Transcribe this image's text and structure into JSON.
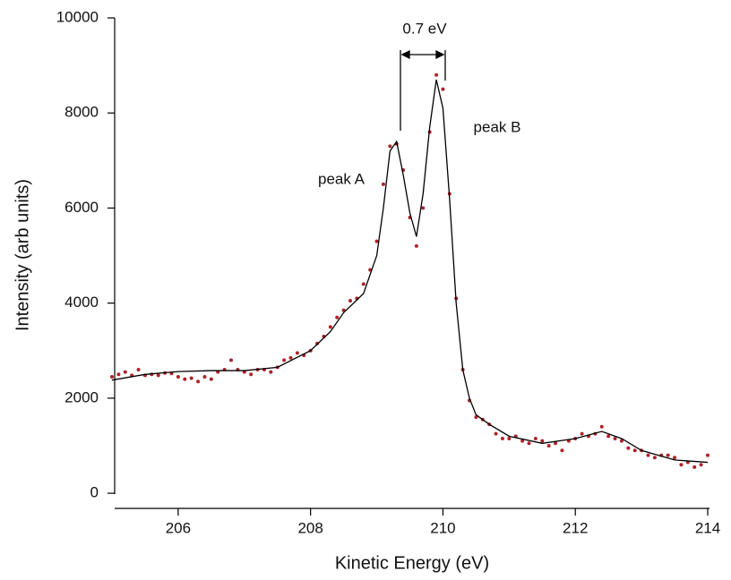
{
  "chart_data": {
    "type": "scatter",
    "x_label": "Kinetic Energy (eV)",
    "y_label": "Intensity (arb units)",
    "xlim": [
      205,
      214
    ],
    "xticks": [
      206,
      208,
      210,
      212,
      214
    ],
    "ylim": [
      -300,
      10000
    ],
    "yticks": [
      0,
      2000,
      4000,
      6000,
      8000,
      10000
    ],
    "annotations": [
      "0.7 eV",
      "peak A",
      "peak B"
    ],
    "series": [
      {
        "type": "scatter",
        "color": "#b0232a",
        "x": [
          205.0,
          205.1,
          205.2,
          205.3,
          205.4,
          205.5,
          205.6,
          205.7,
          205.8,
          205.9,
          206.0,
          206.1,
          206.2,
          206.3,
          206.4,
          206.5,
          206.6,
          206.7,
          206.8,
          206.9,
          207.0,
          207.1,
          207.2,
          207.3,
          207.4,
          207.5,
          207.6,
          207.7,
          207.8,
          207.9,
          208.0,
          208.1,
          208.2,
          208.3,
          208.4,
          208.5,
          208.6,
          208.7,
          208.8,
          208.9,
          209.0,
          209.1,
          209.2,
          209.3,
          209.4,
          209.5,
          209.6,
          209.7,
          209.8,
          209.9,
          210.0,
          210.1,
          210.2,
          210.3,
          210.4,
          210.5,
          210.6,
          210.7,
          210.8,
          210.9,
          211.0,
          211.1,
          211.2,
          211.3,
          211.4,
          211.5,
          211.6,
          211.7,
          211.8,
          211.9,
          212.0,
          212.1,
          212.2,
          212.3,
          212.4,
          212.5,
          212.6,
          212.7,
          212.8,
          212.9,
          213.0,
          213.1,
          213.2,
          213.3,
          213.4,
          213.5,
          213.6,
          213.7,
          213.8,
          213.9,
          214.0
        ],
        "values": [
          2450,
          2500,
          2550,
          2480,
          2600,
          2480,
          2500,
          2480,
          2530,
          2520,
          2450,
          2400,
          2420,
          2350,
          2450,
          2400,
          2550,
          2600,
          2800,
          2600,
          2550,
          2500,
          2600,
          2600,
          2550,
          2650,
          2800,
          2850,
          2950,
          2900,
          3000,
          3150,
          3300,
          3500,
          3700,
          3850,
          4050,
          4100,
          4400,
          4700,
          5300,
          6500,
          7300,
          7350,
          6800,
          5800,
          5200,
          6000,
          7600,
          8800,
          8500,
          6300,
          4100,
          2600,
          1950,
          1600,
          1550,
          1450,
          1250,
          1150,
          1150,
          1200,
          1100,
          1050,
          1150,
          1100,
          1000,
          1050,
          900,
          1100,
          1150,
          1250,
          1200,
          1250,
          1400,
          1200,
          1150,
          1100,
          950,
          900,
          900,
          800,
          750,
          800,
          800,
          750,
          600,
          650,
          550,
          600,
          800
        ]
      },
      {
        "type": "line",
        "color": "#000000",
        "x": [
          205.0,
          205.5,
          206.0,
          206.5,
          207.0,
          207.5,
          208.0,
          208.3,
          208.5,
          208.8,
          209.0,
          209.1,
          209.2,
          209.3,
          209.4,
          209.5,
          209.6,
          209.7,
          209.8,
          209.9,
          210.0,
          210.1,
          210.2,
          210.3,
          210.4,
          210.5,
          210.7,
          211.0,
          211.5,
          212.0,
          212.4,
          212.7,
          213.0,
          213.5,
          214.0
        ],
        "values": [
          2380,
          2500,
          2560,
          2580,
          2580,
          2650,
          3000,
          3400,
          3800,
          4200,
          5000,
          6000,
          7200,
          7400,
          6700,
          5900,
          5400,
          6300,
          7700,
          8700,
          8100,
          6200,
          4000,
          2600,
          2000,
          1650,
          1450,
          1200,
          1050,
          1150,
          1300,
          1150,
          900,
          700,
          650
        ]
      }
    ]
  }
}
